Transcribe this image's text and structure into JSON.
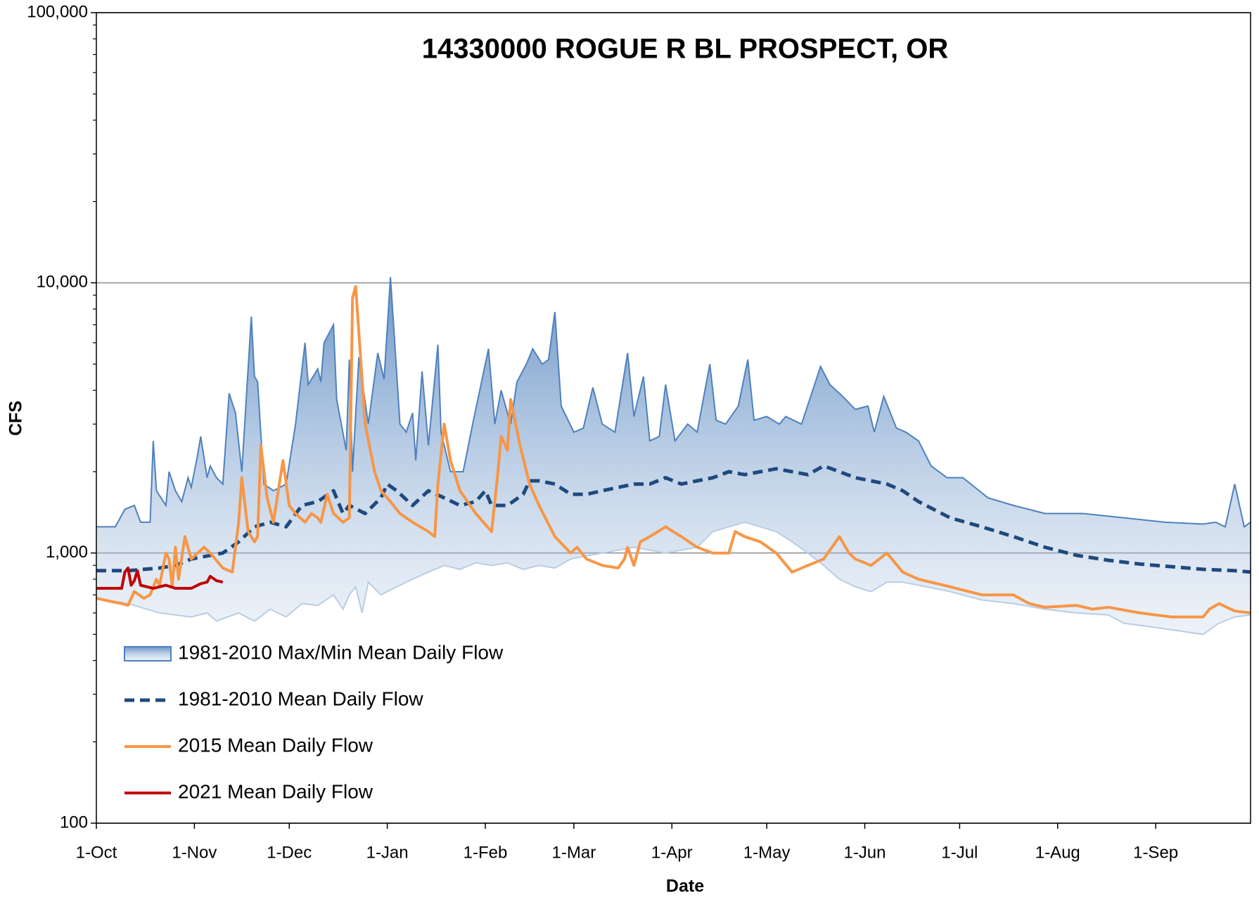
{
  "chart_data": {
    "type": "line",
    "title": "14330000 ROGUE R BL PROSPECT, OR",
    "x_label": "Date",
    "y_label": "CFS",
    "log_y": true,
    "grid": true,
    "legend": "lower left",
    "xlim": [
      0,
      365
    ],
    "xticks": [
      {
        "value": 0,
        "label": "1-Oct"
      },
      {
        "value": 31,
        "label": "1-Nov"
      },
      {
        "value": 61,
        "label": "1-Dec"
      },
      {
        "value": 92,
        "label": "1-Jan"
      },
      {
        "value": 123,
        "label": "1-Feb"
      },
      {
        "value": 151,
        "label": "1-Mar"
      },
      {
        "value": 182,
        "label": "1-Apr"
      },
      {
        "value": 212,
        "label": "1-May"
      },
      {
        "value": 243,
        "label": "1-Jun"
      },
      {
        "value": 273,
        "label": "1-Jul"
      },
      {
        "value": 304,
        "label": "1-Aug"
      },
      {
        "value": 335,
        "label": "1-Sep"
      }
    ],
    "ylim": [
      100,
      100000
    ],
    "yticks": [
      100,
      {
        "value": 1000,
        "label": "1,000"
      },
      {
        "value": 10000,
        "label": "10,000"
      },
      {
        "value": 100000,
        "label": "100,000"
      }
    ],
    "series": [
      {
        "name": "1981-2010 Max/Min Mean Daily Flow",
        "kind": "band",
        "color": "#4f81bd",
        "lower_color": "#b9cde5",
        "x": [
          0,
          6,
          9,
          12,
          14,
          17,
          18,
          19,
          22,
          23,
          25,
          27,
          29,
          30,
          32,
          33,
          35,
          36,
          38,
          40,
          42,
          44,
          46,
          49,
          50,
          51,
          53,
          56,
          60,
          63,
          66,
          67,
          70,
          71,
          72,
          75,
          76,
          79,
          80,
          81,
          83,
          86,
          89,
          91,
          93,
          94,
          96,
          98,
          100,
          101,
          103,
          105,
          108,
          109,
          112,
          116,
          119,
          124,
          126,
          128,
          131,
          133,
          136,
          138,
          141,
          143,
          145,
          147,
          151,
          154,
          157,
          160,
          164,
          168,
          170,
          173,
          175,
          178,
          180,
          183,
          187,
          190,
          194,
          196,
          199,
          203,
          206,
          208,
          212,
          216,
          218,
          223,
          229,
          232,
          236,
          240,
          244,
          246,
          249,
          253,
          256,
          260,
          264,
          269,
          274,
          282,
          290,
          300,
          312,
          325,
          338,
          350,
          354,
          357,
          360,
          363,
          365
        ],
        "values": [
          1250,
          1250,
          1450,
          1500,
          1300,
          1300,
          2600,
          1700,
          1500,
          2000,
          1700,
          1550,
          1900,
          1750,
          2300,
          2700,
          1900,
          2100,
          1900,
          1800,
          3900,
          3300,
          2000,
          7500,
          4500,
          4300,
          1800,
          1700,
          1800,
          3000,
          6000,
          4200,
          4800,
          4300,
          6000,
          7000,
          3700,
          2400,
          5200,
          2000,
          5300,
          3000,
          5500,
          4400,
          10500,
          7000,
          3000,
          2800,
          3300,
          2200,
          4700,
          2500,
          5900,
          2800,
          2000,
          2000,
          3000,
          5700,
          3000,
          4000,
          3000,
          4300,
          5000,
          5700,
          5000,
          5200,
          7800,
          3500,
          2800,
          2900,
          4100,
          3000,
          2800,
          5500,
          3200,
          4500,
          2600,
          2700,
          4200,
          2600,
          3000,
          2800,
          5000,
          3100,
          3000,
          3500,
          5200,
          3100,
          3200,
          3000,
          3200,
          3000,
          4900,
          4200,
          3800,
          3400,
          3500,
          2800,
          3800,
          2900,
          2800,
          2600,
          2100,
          1900,
          1900,
          1600,
          1500,
          1400,
          1400,
          1350,
          1300,
          1280,
          1300,
          1250,
          1800,
          1250,
          1300
        ],
        "min_x": [
          0,
          10,
          20,
          30,
          35,
          38,
          45,
          50,
          55,
          60,
          65,
          70,
          75,
          78,
          80,
          82,
          84,
          86,
          90,
          95,
          100,
          105,
          110,
          115,
          120,
          125,
          130,
          135,
          140,
          145,
          150,
          160,
          170,
          180,
          190,
          195,
          200,
          205,
          210,
          215,
          220,
          225,
          230,
          235,
          240,
          245,
          250,
          255,
          260,
          270,
          280,
          290,
          300,
          310,
          320,
          325,
          335,
          345,
          350,
          355,
          360,
          365
        ],
        "min_values": [
          680,
          650,
          600,
          580,
          600,
          560,
          600,
          560,
          620,
          580,
          650,
          640,
          700,
          620,
          700,
          750,
          600,
          780,
          700,
          750,
          800,
          850,
          900,
          870,
          920,
          900,
          920,
          870,
          900,
          880,
          950,
          1000,
          1050,
          1000,
          1050,
          1200,
          1250,
          1300,
          1250,
          1200,
          1100,
          1000,
          900,
          800,
          750,
          720,
          780,
          780,
          760,
          720,
          670,
          650,
          620,
          600,
          590,
          550,
          530,
          510,
          500,
          550,
          580,
          590
        ]
      },
      {
        "name": "1981-2010 Mean Daily Flow",
        "kind": "line",
        "dash": true,
        "color": "#1f497d",
        "x": [
          0,
          10,
          20,
          25,
          30,
          40,
          45,
          50,
          55,
          60,
          65,
          70,
          75,
          78,
          80,
          85,
          90,
          92,
          95,
          100,
          105,
          110,
          115,
          120,
          123,
          125,
          130,
          135,
          137,
          140,
          145,
          150,
          155,
          160,
          170,
          175,
          180,
          185,
          190,
          195,
          200,
          205,
          210,
          215,
          220,
          225,
          230,
          235,
          240,
          245,
          250,
          255,
          260,
          270,
          280,
          290,
          300,
          310,
          320,
          330,
          340,
          350,
          360,
          365
        ],
        "values": [
          860,
          860,
          880,
          900,
          950,
          1000,
          1100,
          1250,
          1300,
          1250,
          1500,
          1550,
          1700,
          1400,
          1500,
          1400,
          1600,
          1800,
          1700,
          1500,
          1700,
          1600,
          1500,
          1550,
          1700,
          1500,
          1500,
          1650,
          1850,
          1850,
          1800,
          1650,
          1650,
          1700,
          1800,
          1800,
          1900,
          1800,
          1850,
          1900,
          2000,
          1950,
          2000,
          2050,
          2000,
          1950,
          2100,
          2000,
          1900,
          1850,
          1800,
          1700,
          1550,
          1350,
          1250,
          1150,
          1050,
          980,
          940,
          910,
          890,
          870,
          860,
          850
        ]
      },
      {
        "name": "2015 Mean Daily Flow",
        "kind": "line",
        "dash": false,
        "color": "#f79646",
        "x": [
          0,
          5,
          8,
          10,
          12,
          15,
          17,
          19,
          20,
          22,
          23,
          24,
          25,
          26,
          28,
          30,
          34,
          36,
          40,
          43,
          45,
          46,
          48,
          50,
          51,
          52,
          54,
          56,
          59,
          61,
          63,
          66,
          68,
          70,
          71,
          73,
          75,
          78,
          80,
          81,
          82,
          85,
          88,
          90,
          93,
          96,
          100,
          105,
          107,
          108,
          110,
          112,
          115,
          120,
          125,
          127,
          128,
          130,
          131,
          134,
          137,
          140,
          145,
          150,
          152,
          155,
          160,
          165,
          167,
          168,
          170,
          172,
          175,
          180,
          185,
          190,
          195,
          200,
          202,
          205,
          210,
          215,
          220,
          225,
          230,
          235,
          238,
          240,
          245,
          250,
          255,
          260,
          270,
          280,
          290,
          295,
          300,
          310,
          315,
          320,
          330,
          340,
          350,
          352,
          355,
          360,
          365
        ],
        "values": [
          680,
          660,
          650,
          640,
          720,
          680,
          700,
          800,
          760,
          1000,
          950,
          750,
          1050,
          800,
          1150,
          950,
          1050,
          1000,
          880,
          850,
          1300,
          1900,
          1200,
          1100,
          1150,
          2500,
          1600,
          1300,
          2200,
          1500,
          1400,
          1300,
          1400,
          1350,
          1300,
          1650,
          1400,
          1300,
          1350,
          8800,
          9700,
          3000,
          2000,
          1700,
          1550,
          1400,
          1300,
          1200,
          1150,
          1800,
          3000,
          2200,
          1700,
          1400,
          1200,
          2000,
          2700,
          2400,
          3700,
          2500,
          1800,
          1500,
          1150,
          1000,
          1050,
          950,
          900,
          880,
          950,
          1050,
          900,
          1100,
          1150,
          1250,
          1150,
          1050,
          1000,
          1000,
          1200,
          1150,
          1100,
          1000,
          850,
          900,
          950,
          1150,
          1000,
          950,
          900,
          1000,
          850,
          800,
          750,
          700,
          700,
          650,
          630,
          640,
          620,
          630,
          600,
          580,
          580,
          620,
          650,
          610,
          600
        ]
      },
      {
        "name": "2021 Mean Daily Flow",
        "kind": "line",
        "dash": false,
        "color": "#c00000",
        "x": [
          0,
          8,
          9,
          10,
          11,
          12,
          13,
          14,
          18,
          22,
          25,
          30,
          33,
          35,
          36,
          38,
          40
        ],
        "values": [
          740,
          740,
          850,
          880,
          760,
          790,
          860,
          760,
          740,
          760,
          740,
          740,
          770,
          780,
          820,
          790,
          780
        ]
      }
    ]
  }
}
